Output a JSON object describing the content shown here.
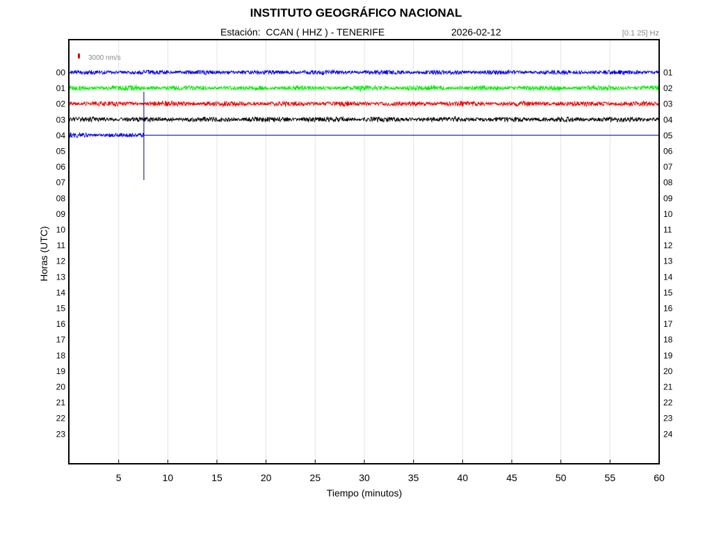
{
  "header": {
    "title": "INSTITUTO GEOGRÁFICO NACIONAL",
    "station": "Estación:  CCAN ( HHZ ) - TENERIFE",
    "date": "2026-02-12",
    "filter": "[0.1 25] Hz"
  },
  "scale_bar": {
    "label": "3000 nm/s",
    "color": "#e00000"
  },
  "chart_data": {
    "type": "line",
    "subtype": "seismogram-helicorder",
    "xlabel": "Tiempo (minutos)",
    "ylabel": "Horas (UTC)",
    "xlim": [
      0,
      60
    ],
    "xticks": [
      5,
      10,
      15,
      20,
      25,
      30,
      35,
      40,
      45,
      50,
      55,
      60
    ],
    "yticks_left": [
      "00",
      "01",
      "02",
      "03",
      "04",
      "05",
      "06",
      "07",
      "08",
      "09",
      "10",
      "11",
      "12",
      "13",
      "14",
      "15",
      "16",
      "17",
      "18",
      "19",
      "20",
      "21",
      "22",
      "23"
    ],
    "yticks_right": [
      "01",
      "02",
      "03",
      "04",
      "05",
      "06",
      "07",
      "08",
      "09",
      "10",
      "11",
      "12",
      "13",
      "14",
      "15",
      "16",
      "17",
      "18",
      "19",
      "20",
      "21",
      "22",
      "23",
      "24"
    ],
    "grid_x": true,
    "series": [
      {
        "hour": 0,
        "color": "#0000ee",
        "start_min": 0,
        "end_min": 60,
        "amplitude": 0.16
      },
      {
        "hour": 1,
        "color": "#00ee00",
        "start_min": 0,
        "end_min": 60,
        "amplitude": 0.18
      },
      {
        "hour": 2,
        "color": "#ee0000",
        "start_min": 0,
        "end_min": 60,
        "amplitude": 0.18
      },
      {
        "hour": 3,
        "color": "#000000",
        "start_min": 0,
        "end_min": 60,
        "amplitude": 0.18
      },
      {
        "hour": 4,
        "color": "#0000ee",
        "start_min": 0,
        "end_min": 7.6,
        "amplitude": 0.16
      }
    ],
    "current_time": {
      "hour": 4,
      "minute": 7.6,
      "color": "#00008b"
    }
  }
}
